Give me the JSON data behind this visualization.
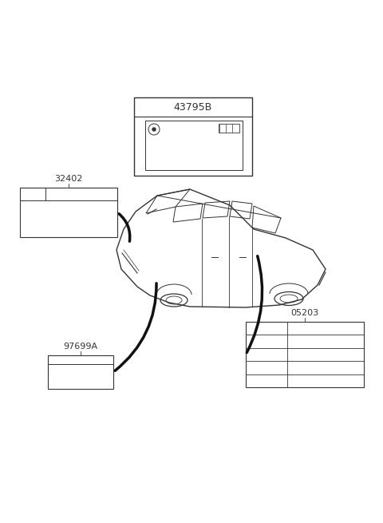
{
  "bg_color": "#ffffff",
  "line_color": "#333333",
  "labels": {
    "part_43795B": "43795B",
    "part_32402": "32402",
    "part_97699A": "97699A",
    "part_05203": "05203"
  }
}
